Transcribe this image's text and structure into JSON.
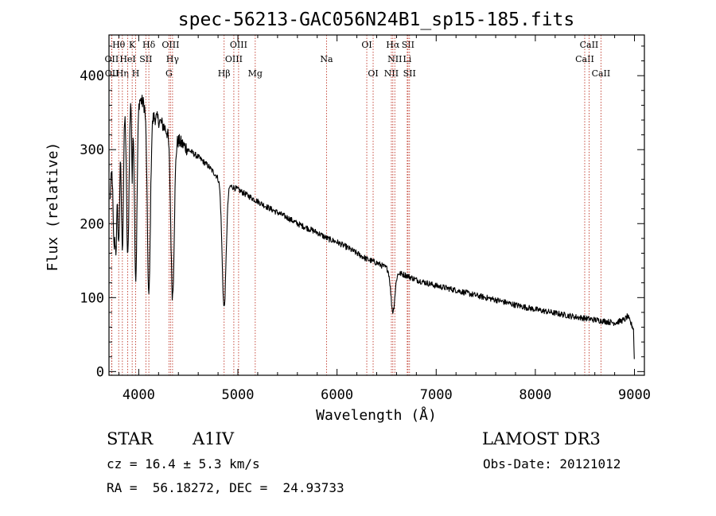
{
  "chart_data": {
    "type": "line",
    "title": "spec-56213-GAC056N24B1_sp15-185.fits",
    "xlabel": "Wavelength (Å)",
    "ylabel": "Flux (relative)",
    "xlim": [
      3700,
      9100
    ],
    "ylim": [
      -5,
      455
    ],
    "xticks": [
      4000,
      5000,
      6000,
      7000,
      8000,
      9000
    ],
    "xtick_labels": [
      "4000",
      "5000",
      "6000",
      "7000",
      "8000",
      "9000"
    ],
    "yticks": [
      0,
      100,
      200,
      300,
      400
    ],
    "ytick_labels": [
      "0",
      "100",
      "200",
      "300",
      "400"
    ],
    "series": [
      {
        "name": "spectrum",
        "color": "#000000",
        "continuum": [
          [
            3710,
            230
          ],
          [
            3750,
            330
          ],
          [
            3800,
            350
          ],
          [
            3850,
            365
          ],
          [
            3900,
            370
          ],
          [
            3950,
            372
          ],
          [
            4000,
            370
          ],
          [
            4050,
            362
          ],
          [
            4100,
            352
          ],
          [
            4150,
            345
          ],
          [
            4200,
            340
          ],
          [
            4250,
            332
          ],
          [
            4300,
            322
          ],
          [
            4400,
            312
          ],
          [
            4500,
            300
          ],
          [
            4600,
            290
          ],
          [
            4700,
            278
          ],
          [
            4800,
            262
          ],
          [
            4900,
            253
          ],
          [
            5000,
            246
          ],
          [
            5100,
            238
          ],
          [
            5200,
            230
          ],
          [
            5300,
            222
          ],
          [
            5400,
            215
          ],
          [
            5500,
            208
          ],
          [
            5600,
            200
          ],
          [
            5700,
            194
          ],
          [
            5800,
            188
          ],
          [
            5900,
            180
          ],
          [
            6000,
            175
          ],
          [
            6100,
            168
          ],
          [
            6200,
            160
          ],
          [
            6300,
            152
          ],
          [
            6400,
            147
          ],
          [
            6500,
            140
          ],
          [
            6600,
            134
          ],
          [
            6700,
            130
          ],
          [
            6800,
            124
          ],
          [
            6900,
            120
          ],
          [
            7000,
            116
          ],
          [
            7200,
            110
          ],
          [
            7400,
            103
          ],
          [
            7600,
            97
          ],
          [
            7800,
            90
          ],
          [
            8000,
            84
          ],
          [
            8200,
            79
          ],
          [
            8400,
            74
          ],
          [
            8600,
            70
          ],
          [
            8800,
            66
          ],
          [
            8900,
            70
          ],
          [
            8930,
            75
          ],
          [
            8960,
            66
          ],
          [
            8990,
            58
          ],
          [
            9000,
            5
          ]
        ],
        "absorption_lines": [
          {
            "name": "H12",
            "center": 3750,
            "depth": 150,
            "width": 9
          },
          {
            "name": "H11",
            "center": 3771,
            "depth": 160,
            "width": 9
          },
          {
            "name": "H10",
            "center": 3798,
            "depth": 175,
            "width": 10
          },
          {
            "name": "H9",
            "center": 3835,
            "depth": 190,
            "width": 11
          },
          {
            "name": "H8",
            "center": 3889,
            "depth": 215,
            "width": 12
          },
          {
            "name": "CaII K",
            "center": 3934,
            "depth": 110,
            "width": 5
          },
          {
            "name": "H epsilon",
            "center": 3970,
            "depth": 245,
            "width": 13
          },
          {
            "name": "H delta",
            "center": 4102,
            "depth": 250,
            "width": 15
          },
          {
            "name": "H gamma",
            "center": 4341,
            "depth": 215,
            "width": 17
          },
          {
            "name": "H beta",
            "center": 4861,
            "depth": 170,
            "width": 20
          },
          {
            "name": "H alpha",
            "center": 6563,
            "depth": 55,
            "width": 20
          }
        ],
        "noise_amplitude": 4
      }
    ],
    "line_markers": {
      "color": "#c0392b",
      "lines": [
        {
          "label": "OII",
          "wave": 3727,
          "row": 1
        },
        {
          "label": "OII",
          "wave": 3729,
          "row": 2
        },
        {
          "label": "Hθ",
          "wave": 3798,
          "row": 0
        },
        {
          "label": "Hη",
          "wave": 3835,
          "row": 2
        },
        {
          "label": "HeI",
          "wave": 3889,
          "row": 1
        },
        {
          "label": "K",
          "wave": 3934,
          "row": 0
        },
        {
          "label": "H",
          "wave": 3969,
          "row": 2
        },
        {
          "label": "SII",
          "wave": 4072,
          "row": 1
        },
        {
          "label": "Hδ",
          "wave": 4102,
          "row": 0
        },
        {
          "label": "G",
          "wave": 4305,
          "row": 2
        },
        {
          "label": "OIII",
          "wave": 4321,
          "row": 0
        },
        {
          "label": "Hγ",
          "wave": 4341,
          "row": 1
        },
        {
          "label": "Hβ",
          "wave": 4861,
          "row": 2
        },
        {
          "label": "OIII",
          "wave": 4959,
          "row": 1
        },
        {
          "label": "OIII",
          "wave": 5007,
          "row": 0
        },
        {
          "label": "Mg",
          "wave": 5175,
          "row": 2
        },
        {
          "label": "Na",
          "wave": 5894,
          "row": 1
        },
        {
          "label": "OI",
          "wave": 6300,
          "row": 0
        },
        {
          "label": "OI",
          "wave": 6364,
          "row": 2
        },
        {
          "label": "NII",
          "wave": 6548,
          "row": 2
        },
        {
          "label": "Hα",
          "wave": 6563,
          "row": 0
        },
        {
          "label": "NII",
          "wave": 6583,
          "row": 1
        },
        {
          "label": "Li",
          "wave": 6708,
          "row": 1
        },
        {
          "label": "SII",
          "wave": 6716,
          "row": 0
        },
        {
          "label": "SII",
          "wave": 6731,
          "row": 2
        },
        {
          "label": "CaII",
          "wave": 8498,
          "row": 1
        },
        {
          "label": "CaII",
          "wave": 8542,
          "row": 0
        },
        {
          "label": "CaII",
          "wave": 8662,
          "row": 2
        }
      ]
    }
  },
  "info": {
    "object_class": "STAR",
    "subclass": "A1IV",
    "survey": "LAMOST DR3",
    "redshift_text": "cz = 16.4 ± 5.3 km/s",
    "obs_date_text": "Obs-Date: 20121012",
    "coords_text": "RA =  56.18272, DEC =  24.93733"
  }
}
